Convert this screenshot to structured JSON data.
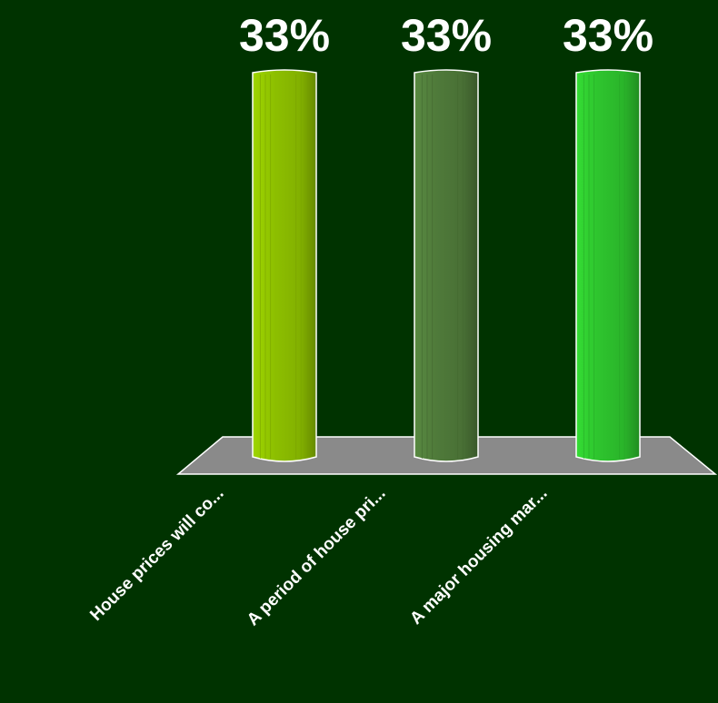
{
  "chart_data": {
    "type": "bar",
    "categories": [
      "House prices will co...",
      "A period of house pri...",
      "A major housing mar..."
    ],
    "values": [
      33,
      33,
      33
    ],
    "value_suffix": "%",
    "ylim": [
      0,
      33
    ],
    "grid": false,
    "legend": "none",
    "colors": {
      "background": "#003300",
      "floor": "#8a8a8a",
      "bars": [
        "#8dbf00",
        "#4f7a3a",
        "#2ec42e"
      ]
    }
  }
}
